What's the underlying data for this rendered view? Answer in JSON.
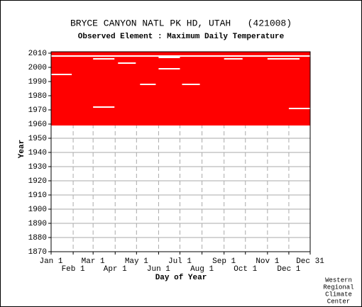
{
  "chart_data": {
    "type": "coverage",
    "title": "BRYCE CANYON NATL PK HD, UTAH   (421008)",
    "subtitle": "Observed Element : Maximum Daily Temperature",
    "x_label": "Day of Year",
    "y_label": "Year",
    "xlim": [
      1,
      365
    ],
    "ylim": [
      1870,
      2010
    ],
    "xticks": [
      {
        "value": 1,
        "label": "Jan 1"
      },
      {
        "value": 32,
        "label": "Feb 1"
      },
      {
        "value": 60,
        "label": "Mar 1"
      },
      {
        "value": 91,
        "label": "Apr 1"
      },
      {
        "value": 121,
        "label": "May 1"
      },
      {
        "value": 152,
        "label": "Jun 1"
      },
      {
        "value": 182,
        "label": "Jul 1"
      },
      {
        "value": 213,
        "label": "Aug 1"
      },
      {
        "value": 244,
        "label": "Sep 1"
      },
      {
        "value": 274,
        "label": "Oct 1"
      },
      {
        "value": 305,
        "label": "Nov 1"
      },
      {
        "value": 335,
        "label": "Dec 1"
      },
      {
        "value": 365,
        "label": "Dec 31"
      }
    ],
    "yticks": [
      1870,
      1880,
      1890,
      1900,
      1910,
      1920,
      1930,
      1940,
      1950,
      1960,
      1970,
      1980,
      1990,
      2000,
      2010
    ],
    "color": "#ff0000",
    "coverage": {
      "start_year": 1959,
      "end_year": 2010,
      "start_day": 1,
      "end_day": 365
    },
    "gaps": [
      {
        "year": 2008,
        "days": [
          1,
          365
        ]
      },
      {
        "year": 1995,
        "days": [
          1,
          30
        ]
      },
      {
        "year": 2006,
        "days": [
          60,
          90
        ]
      },
      {
        "year": 1972,
        "days": [
          60,
          90
        ]
      },
      {
        "year": 2003,
        "days": [
          95,
          120
        ]
      },
      {
        "year": 1999,
        "days": [
          152,
          182
        ]
      },
      {
        "year": 2007,
        "days": [
          152,
          182
        ]
      },
      {
        "year": 1988,
        "days": [
          126,
          148
        ]
      },
      {
        "year": 1988,
        "days": [
          185,
          210
        ]
      },
      {
        "year": 1971,
        "days": [
          335,
          365
        ]
      },
      {
        "year": 2006,
        "days": [
          244,
          270
        ]
      },
      {
        "year": 2006,
        "days": [
          305,
          350
        ]
      }
    ],
    "footer": [
      "Western",
      "Regional",
      "Climate",
      "Center"
    ]
  }
}
